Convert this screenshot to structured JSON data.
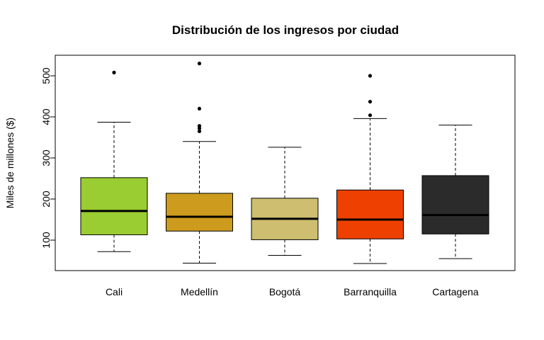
{
  "chart_data": {
    "type": "boxplot",
    "title": "Distribución de los ingresos por ciudad",
    "xlabel": "",
    "ylabel": "Miles de millones ($)",
    "ylim": [
      20,
      540
    ],
    "yticks": [
      100,
      200,
      300,
      400,
      500
    ],
    "grid": false,
    "categories": [
      "Cali",
      "Medellín",
      "Bogotá",
      "Barranquilla",
      "Cartagena"
    ],
    "boxes": [
      {
        "color": "#9acd32",
        "whisker_low": 72,
        "q1": 113,
        "median": 171,
        "q3": 252,
        "whisker_high": 387,
        "outliers": [
          508
        ]
      },
      {
        "color": "#cd9b1d",
        "whisker_low": 44,
        "q1": 122,
        "median": 157,
        "q3": 214,
        "whisker_high": 340,
        "outliers": [
          365,
          372,
          378,
          420,
          530
        ]
      },
      {
        "color": "#cdbe70",
        "whisker_low": 63,
        "q1": 101,
        "median": 152,
        "q3": 202,
        "whisker_high": 326,
        "outliers": []
      },
      {
        "color": "#ee4000",
        "whisker_low": 43,
        "q1": 103,
        "median": 150,
        "q3": 222,
        "whisker_high": 396,
        "outliers": [
          404,
          437,
          500
        ]
      },
      {
        "color": "#2b2b2b",
        "whisker_low": 55,
        "q1": 115,
        "median": 161,
        "q3": 257,
        "whisker_high": 380,
        "outliers": []
      }
    ]
  }
}
